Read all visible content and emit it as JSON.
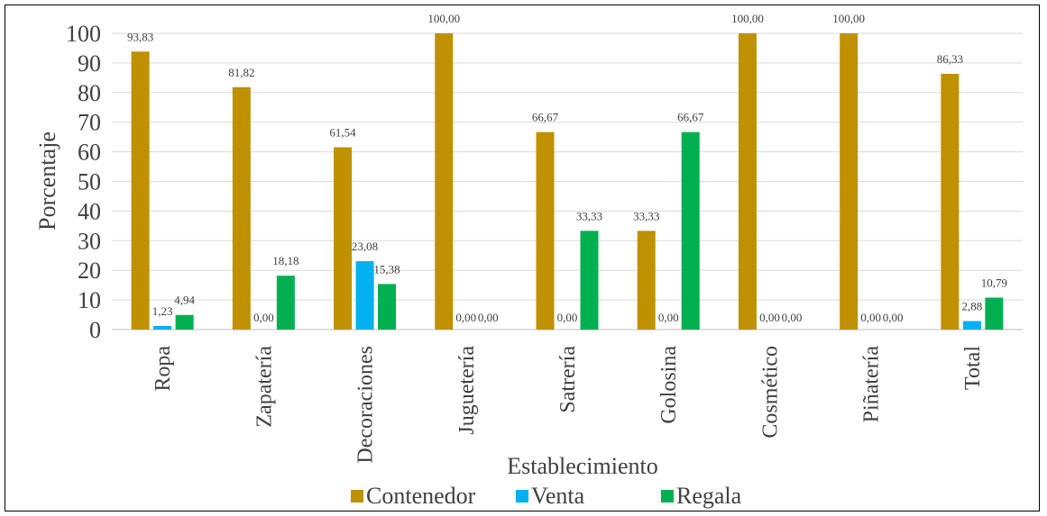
{
  "chart_data": {
    "type": "bar",
    "categories": [
      "Ropa",
      "Zapatería",
      "Decoraciones",
      "Juguetería",
      "Satrería",
      "Golosina",
      "Cosmético",
      "Piñatería",
      "Total"
    ],
    "series": [
      {
        "name": "Contenedor",
        "color": "#bf9000",
        "values": [
          93.83,
          81.82,
          61.54,
          100.0,
          66.67,
          33.33,
          100.0,
          100.0,
          86.33
        ],
        "labels": [
          "93,83",
          "81,82",
          "61,54",
          "100,00",
          "66,67",
          "33,33",
          "100,00",
          "100,00",
          "86,33"
        ]
      },
      {
        "name": "Venta",
        "color": "#00b0f0",
        "values": [
          1.23,
          0.0,
          23.08,
          0.0,
          0.0,
          0.0,
          0.0,
          0.0,
          2.88
        ],
        "labels": [
          "1,23",
          "0,00",
          "23,08",
          "0,00",
          "0,00",
          "0,00",
          "0,00",
          "0,00",
          "2,88"
        ]
      },
      {
        "name": "Regala",
        "color": "#00b050",
        "values": [
          4.94,
          18.18,
          15.38,
          0.0,
          33.33,
          66.67,
          0.0,
          0.0,
          10.79
        ],
        "labels": [
          "4,94",
          "18,18",
          "15,38",
          "0,00",
          "33,33",
          "66,67",
          "0,00",
          "0,00",
          "10,79"
        ]
      }
    ],
    "yticks": [
      "0",
      "10",
      "20",
      "30",
      "40",
      "50",
      "60",
      "70",
      "80",
      "90",
      "100"
    ],
    "ylim": [
      0,
      100
    ],
    "xlabel": "Establecimiento",
    "ylabel": "Porcentaje",
    "grid": true,
    "legend": "bottom"
  }
}
